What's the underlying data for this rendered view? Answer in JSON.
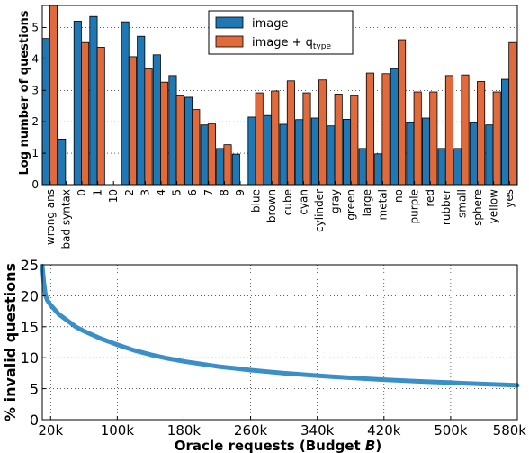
{
  "chart_data": [
    {
      "type": "bar",
      "ylabel": "Log number of questions",
      "ylim": [
        0,
        5.7
      ],
      "yticks": [
        "0",
        "1",
        "2",
        "3",
        "4",
        "5"
      ],
      "grid": true,
      "legend_position": "top-center",
      "categories": [
        "wrong ans",
        "bad syntax",
        "0",
        "1",
        "10",
        "2",
        "3",
        "4",
        "5",
        "6",
        "7",
        "8",
        "9",
        "blue",
        "brown",
        "cube",
        "cyan",
        "cylinder",
        "gray",
        "green",
        "large",
        "metal",
        "no",
        "purple",
        "red",
        "rubber",
        "small",
        "sphere",
        "yellow",
        "yes"
      ],
      "series": [
        {
          "name": "image",
          "name_suffix": "type",
          "legend_html": "image",
          "color": "#1f77b4",
          "values": [
            4.65,
            1.45,
            5.2,
            5.35,
            0,
            5.18,
            4.72,
            4.13,
            3.47,
            2.78,
            1.9,
            1.15,
            0.97,
            2.15,
            2.2,
            1.92,
            2.07,
            2.12,
            1.87,
            2.08,
            1.15,
            0.98,
            3.69,
            1.97,
            2.12,
            1.15,
            1.15,
            1.97,
            1.9,
            3.35
          ]
        },
        {
          "name": "image + q",
          "name_suffix": "type",
          "color": "#e06a3b",
          "values": [
            5.7,
            0,
            4.52,
            4.37,
            0,
            4.07,
            3.68,
            3.26,
            2.82,
            2.39,
            1.93,
            1.27,
            0,
            2.92,
            2.98,
            3.3,
            2.92,
            3.33,
            2.88,
            2.83,
            3.55,
            3.53,
            4.61,
            2.95,
            2.95,
            3.47,
            3.49,
            3.28,
            2.95,
            4.52
          ]
        }
      ]
    },
    {
      "type": "line",
      "xlabel": "Oracle requests (Budget ",
      "xlabel_var": "B",
      "xlabel_close": ")",
      "ylabel": "% invalid questions",
      "xlim": [
        10000,
        580000
      ],
      "ylim": [
        0,
        25
      ],
      "xticks": [
        20000,
        100000,
        180000,
        260000,
        340000,
        420000,
        500000,
        580000
      ],
      "xtick_labels": [
        "20k",
        "100k",
        "180k",
        "260k",
        "340k",
        "420k",
        "500k",
        "580k"
      ],
      "yticks": [
        "0",
        "5",
        "10",
        "15",
        "20",
        "25"
      ],
      "grid": true,
      "color": "#3a8fc8",
      "x": [
        10000,
        12000,
        14000,
        16000,
        20000,
        30000,
        40000,
        50000,
        60000,
        70000,
        80000,
        100000,
        120000,
        140000,
        160000,
        180000,
        200000,
        220000,
        240000,
        260000,
        280000,
        300000,
        320000,
        340000,
        360000,
        380000,
        400000,
        420000,
        440000,
        460000,
        480000,
        500000,
        520000,
        540000,
        560000,
        580000
      ],
      "y": [
        24.8,
        22.0,
        20.0,
        19.3,
        18.5,
        17.0,
        16.0,
        15.0,
        14.3,
        13.7,
        13.1,
        12.1,
        11.2,
        10.5,
        9.9,
        9.4,
        9.0,
        8.6,
        8.3,
        8.0,
        7.75,
        7.5,
        7.3,
        7.1,
        6.92,
        6.76,
        6.6,
        6.45,
        6.32,
        6.2,
        6.08,
        5.97,
        5.85,
        5.75,
        5.65,
        5.55
      ]
    }
  ]
}
